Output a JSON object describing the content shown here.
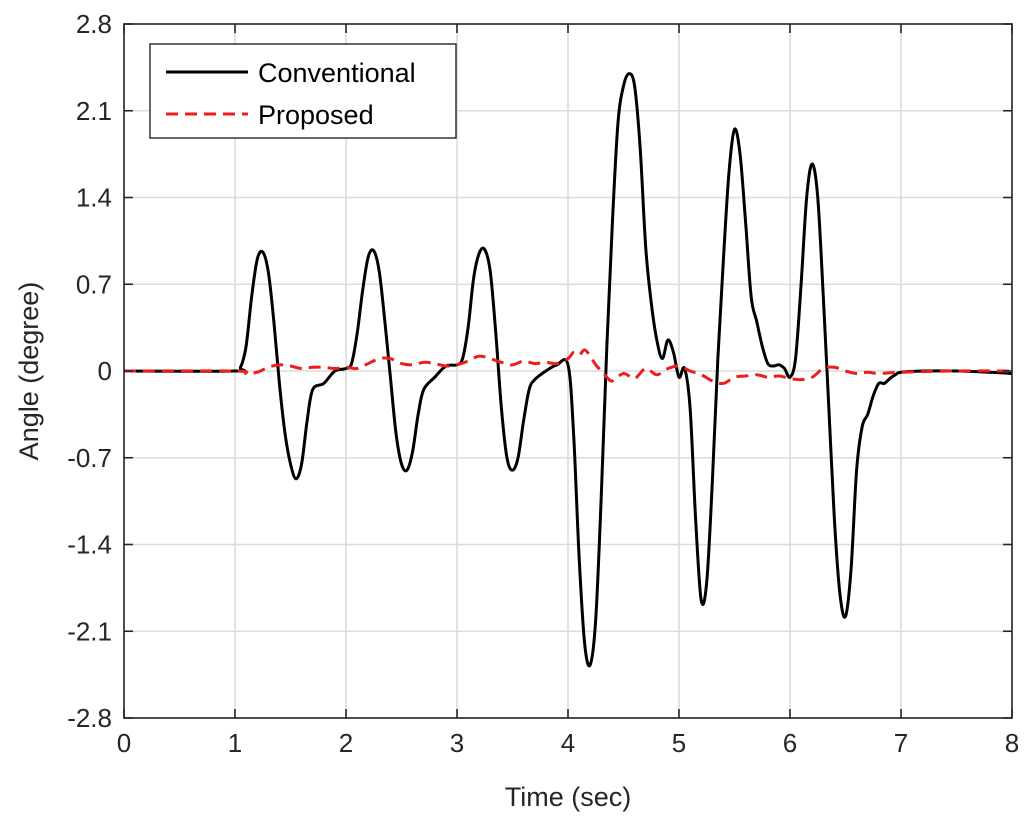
{
  "chart_data": {
    "type": "line",
    "title": "",
    "xlabel": "Time (sec)",
    "ylabel": "Angle (degree)",
    "xlim": [
      0,
      8
    ],
    "ylim": [
      -2.8,
      2.8
    ],
    "grid": true,
    "legend_position": "top-left",
    "x_ticks": [
      0,
      1,
      2,
      3,
      4,
      5,
      6,
      7,
      8
    ],
    "x_tick_labels": [
      "0",
      "1",
      "2",
      "3",
      "4",
      "5",
      "6",
      "7",
      "8"
    ],
    "y_ticks": [
      2.8,
      2.1,
      1.4,
      0.7,
      0,
      -0.7,
      -1.4,
      -2.1,
      -2.8
    ],
    "y_tick_labels": [
      "2.8",
      "2.1",
      "1.4",
      "0.7",
      "0",
      "-0.7",
      "-1.4",
      "-2.1",
      "-2.8"
    ],
    "series": [
      {
        "name": "Conventional",
        "color": "#000000",
        "style": "solid",
        "x": [
          0,
          1.0,
          1.05,
          1.1,
          1.15,
          1.2,
          1.25,
          1.3,
          1.35,
          1.4,
          1.45,
          1.5,
          1.55,
          1.6,
          1.65,
          1.7,
          1.8,
          1.9,
          2.0,
          2.05,
          2.1,
          2.15,
          2.2,
          2.25,
          2.3,
          2.35,
          2.4,
          2.45,
          2.5,
          2.55,
          2.6,
          2.65,
          2.7,
          2.8,
          2.9,
          3.0,
          3.05,
          3.1,
          3.15,
          3.2,
          3.25,
          3.3,
          3.35,
          3.4,
          3.45,
          3.5,
          3.55,
          3.6,
          3.65,
          3.7,
          3.8,
          3.9,
          4.0,
          4.05,
          4.1,
          4.15,
          4.2,
          4.25,
          4.3,
          4.35,
          4.4,
          4.45,
          4.5,
          4.55,
          4.6,
          4.65,
          4.7,
          4.75,
          4.8,
          4.85,
          4.9,
          4.95,
          5.0,
          5.05,
          5.1,
          5.15,
          5.2,
          5.25,
          5.3,
          5.35,
          5.4,
          5.45,
          5.5,
          5.55,
          5.6,
          5.65,
          5.7,
          5.75,
          5.8,
          5.85,
          5.9,
          5.95,
          6.0,
          6.05,
          6.1,
          6.15,
          6.2,
          6.25,
          6.3,
          6.35,
          6.4,
          6.45,
          6.5,
          6.55,
          6.6,
          6.65,
          6.7,
          6.75,
          6.8,
          6.85,
          6.9,
          6.95,
          7.0,
          7.2,
          7.5,
          7.8,
          8.0
        ],
        "values": [
          0,
          0,
          0.03,
          0.2,
          0.6,
          0.9,
          0.96,
          0.8,
          0.4,
          -0.1,
          -0.5,
          -0.75,
          -0.87,
          -0.75,
          -0.4,
          -0.15,
          -0.1,
          0,
          0.02,
          0.06,
          0.3,
          0.65,
          0.92,
          0.97,
          0.8,
          0.4,
          -0.05,
          -0.5,
          -0.75,
          -0.8,
          -0.65,
          -0.35,
          -0.15,
          -0.05,
          0.04,
          0.05,
          0.1,
          0.35,
          0.75,
          0.95,
          0.98,
          0.8,
          0.3,
          -0.3,
          -0.7,
          -0.8,
          -0.7,
          -0.4,
          -0.15,
          -0.07,
          0,
          0.05,
          0.05,
          -0.5,
          -1.5,
          -2.2,
          -2.37,
          -2.0,
          -1.0,
          0.2,
          1.2,
          2.0,
          2.3,
          2.4,
          2.3,
          1.8,
          1.0,
          0.55,
          0.25,
          0.1,
          0.25,
          0.15,
          -0.05,
          0.02,
          -0.3,
          -1.2,
          -1.85,
          -1.7,
          -0.9,
          0.1,
          0.9,
          1.6,
          1.95,
          1.75,
          1.2,
          0.6,
          0.4,
          0.2,
          0.06,
          0.04,
          0.05,
          0.02,
          -0.05,
          0.1,
          0.7,
          1.4,
          1.67,
          1.4,
          0.6,
          -0.3,
          -1.2,
          -1.8,
          -1.98,
          -1.6,
          -0.8,
          -0.45,
          -0.35,
          -0.2,
          -0.1,
          -0.1,
          -0.06,
          -0.03,
          -0.01,
          0,
          0,
          -0.01,
          -0.02
        ]
      },
      {
        "name": "Proposed",
        "color": "#ee1c1c",
        "style": "dashed",
        "x": [
          0,
          1.0,
          1.1,
          1.2,
          1.3,
          1.4,
          1.5,
          1.6,
          1.7,
          1.8,
          1.9,
          2.0,
          2.1,
          2.2,
          2.3,
          2.4,
          2.5,
          2.6,
          2.7,
          2.8,
          2.9,
          3.0,
          3.1,
          3.2,
          3.3,
          3.4,
          3.5,
          3.6,
          3.7,
          3.8,
          3.9,
          4.0,
          4.05,
          4.1,
          4.15,
          4.2,
          4.25,
          4.3,
          4.35,
          4.4,
          4.5,
          4.6,
          4.7,
          4.8,
          4.9,
          5.0,
          5.1,
          5.2,
          5.3,
          5.4,
          5.5,
          5.6,
          5.7,
          5.8,
          5.9,
          6.0,
          6.1,
          6.2,
          6.3,
          6.4,
          6.5,
          6.6,
          6.7,
          6.8,
          7.0,
          7.5,
          8.0
        ],
        "values": [
          0,
          0,
          -0.02,
          -0.01,
          0.03,
          0.05,
          0.04,
          0.02,
          0.03,
          0.03,
          0.02,
          0.03,
          0.02,
          0.06,
          0.1,
          0.1,
          0.06,
          0.05,
          0.07,
          0.06,
          0.04,
          0.05,
          0.08,
          0.12,
          0.1,
          0.07,
          0.05,
          0.08,
          0.06,
          0.07,
          0.06,
          0.1,
          0.15,
          0.13,
          0.17,
          0.12,
          0.05,
          0.0,
          -0.05,
          -0.08,
          -0.02,
          -0.06,
          0.02,
          -0.03,
          0.02,
          0.04,
          0.0,
          -0.03,
          -0.08,
          -0.1,
          -0.05,
          -0.04,
          -0.03,
          -0.05,
          -0.04,
          -0.06,
          -0.07,
          -0.05,
          0.02,
          0.03,
          0.0,
          -0.02,
          -0.01,
          -0.02,
          -0.01,
          0.0,
          0.0
        ]
      }
    ]
  }
}
